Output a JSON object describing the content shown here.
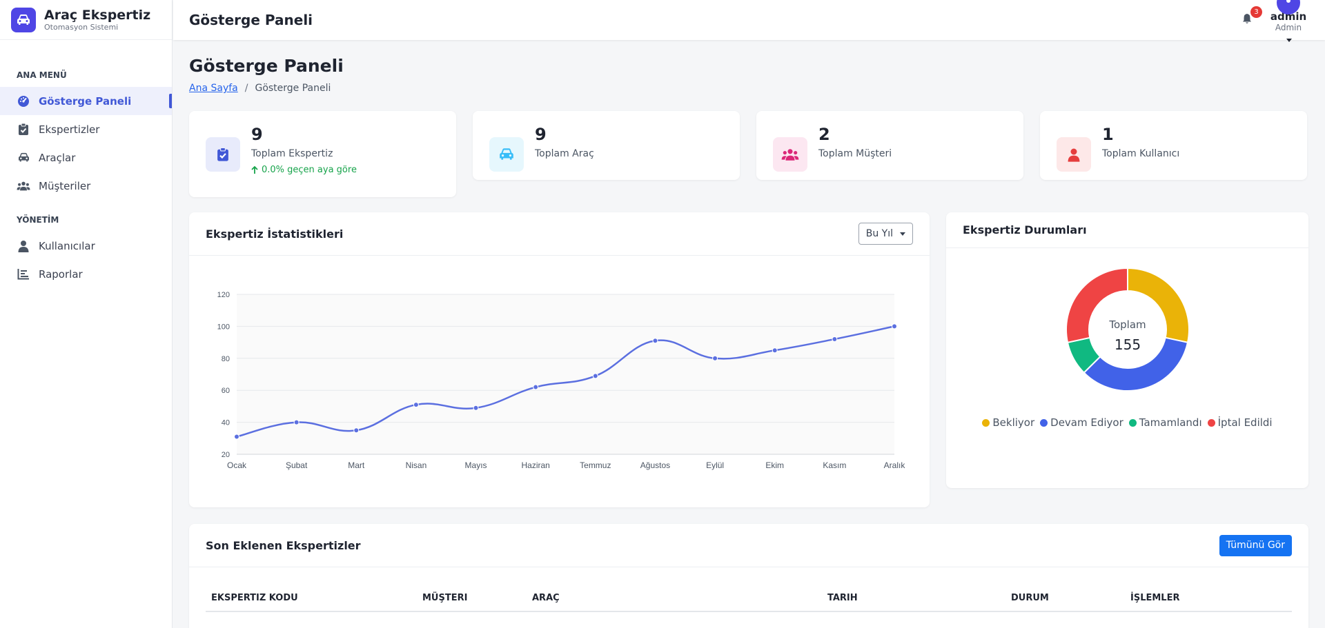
{
  "brand": {
    "title": "Araç Ekspertiz",
    "subtitle": "Otomasyon Sistemi",
    "logo_icon": "car-icon"
  },
  "sidebar": {
    "sections": [
      {
        "label": "ANA MENÜ"
      },
      {
        "label": "YÖNETİM"
      }
    ],
    "items": [
      {
        "label": "Gösterge Paneli",
        "icon": "gauge-icon",
        "active": true
      },
      {
        "label": "Ekspertizler",
        "icon": "clipboard-check-icon"
      },
      {
        "label": "Araçlar",
        "icon": "car-icon"
      },
      {
        "label": "Müşteriler",
        "icon": "users-icon"
      },
      {
        "label": "Kullanıcılar",
        "icon": "user-icon"
      },
      {
        "label": "Raporlar",
        "icon": "bar-chart-icon"
      }
    ]
  },
  "topbar": {
    "title": "Gösterge Paneli",
    "notifications": {
      "count": "3",
      "icon": "bell-icon"
    },
    "user": {
      "name": "admin",
      "role": "Admin"
    }
  },
  "page": {
    "title": "Gösterge Paneli",
    "breadcrumb": {
      "home": "Ana Sayfa",
      "separator": "/",
      "current": "Gösterge Paneli"
    }
  },
  "cards": [
    {
      "value": "9",
      "label": "Toplam Ekspertiz",
      "trend": "0.0% geçen aya göre",
      "icon": "clipboard-check-icon",
      "color": "#4158d6",
      "bg": "#e8ebfb"
    },
    {
      "value": "9",
      "label": "Toplam Araç",
      "icon": "car-icon",
      "color": "#38bdf8",
      "bg": "#e6f7fd"
    },
    {
      "value": "2",
      "label": "Toplam Müşteri",
      "icon": "users-icon",
      "color": "#db2777",
      "bg": "#fce7f1"
    },
    {
      "value": "1",
      "label": "Toplam Kullanıcı",
      "icon": "user-icon",
      "color": "#e53e3e",
      "bg": "#fde8e8"
    }
  ],
  "stats_panel": {
    "title": "Ekspertiz İstatistikleri",
    "range": "Bu Yıl"
  },
  "donut_panel": {
    "title": "Ekspertiz Durumları",
    "center_label": "Toplam",
    "center_value": "155"
  },
  "recent": {
    "title": "Son Eklenen Ekspertizler",
    "button": "Tümünü Gör",
    "columns": [
      "Ekspertiz Kodu",
      "Müşteri",
      "Araç",
      "Tarih",
      "Durum",
      "İşlemler"
    ]
  },
  "chart_data": [
    {
      "type": "line",
      "categories": [
        "Ocak",
        "Şubat",
        "Mart",
        "Nisan",
        "Mayıs",
        "Haziran",
        "Temmuz",
        "Ağustos",
        "Eylül",
        "Ekim",
        "Kasım",
        "Aralık"
      ],
      "series": [
        {
          "values": [
            31,
            40,
            35,
            51,
            49,
            62,
            69,
            91,
            80,
            85,
            92,
            100
          ],
          "color": "#5b6fe0"
        }
      ],
      "ylim": [
        20,
        120
      ],
      "yticks": [
        20,
        40,
        60,
        80,
        100,
        120
      ],
      "grid": true
    },
    {
      "type": "pie",
      "categories": [
        "Bekliyor",
        "Devam Ediyor",
        "Tamamlandı",
        "İptal Edildi"
      ],
      "values": [
        44,
        53,
        14,
        44
      ],
      "colors": [
        "#eab308",
        "#4162e8",
        "#10b981",
        "#ef4444"
      ],
      "legend": "bottom"
    }
  ]
}
